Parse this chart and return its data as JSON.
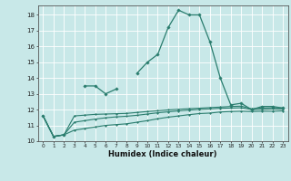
{
  "xlabel": "Humidex (Indice chaleur)",
  "x": [
    0,
    1,
    2,
    3,
    4,
    5,
    6,
    7,
    8,
    9,
    10,
    11,
    12,
    13,
    14,
    15,
    16,
    17,
    18,
    19,
    20,
    21,
    22,
    23
  ],
  "line1": [
    11.6,
    10.3,
    10.4,
    null,
    13.5,
    13.5,
    13.0,
    13.3,
    null,
    14.3,
    15.0,
    15.5,
    17.2,
    18.3,
    18.0,
    18.0,
    16.3,
    14.0,
    12.3,
    12.4,
    12.0,
    12.2,
    12.2,
    12.1
  ],
  "line2": [
    11.6,
    10.3,
    10.4,
    11.6,
    11.65,
    11.7,
    11.72,
    11.74,
    11.76,
    11.82,
    11.88,
    11.93,
    11.98,
    12.02,
    12.06,
    12.09,
    12.13,
    12.16,
    12.2,
    12.22,
    12.05,
    12.1,
    12.12,
    12.1
  ],
  "line3": [
    11.6,
    10.3,
    10.4,
    11.2,
    11.3,
    11.4,
    11.48,
    11.54,
    11.58,
    11.64,
    11.72,
    11.8,
    11.86,
    11.92,
    11.97,
    12.01,
    12.04,
    12.08,
    12.1,
    12.12,
    12.0,
    12.02,
    12.04,
    12.02
  ],
  "line4": [
    11.6,
    10.3,
    10.4,
    10.7,
    10.8,
    10.9,
    11.0,
    11.05,
    11.1,
    11.2,
    11.3,
    11.42,
    11.52,
    11.6,
    11.68,
    11.75,
    11.78,
    11.85,
    11.88,
    11.9,
    11.88,
    11.9,
    11.9,
    11.92
  ],
  "color": "#2a7d6e",
  "bg_color": "#c8e8e8",
  "grid_color": "#ffffff",
  "ylim": [
    10.0,
    18.6
  ],
  "yticks": [
    10,
    11,
    12,
    13,
    14,
    15,
    16,
    17,
    18
  ],
  "xlim": [
    -0.5,
    23.5
  ]
}
